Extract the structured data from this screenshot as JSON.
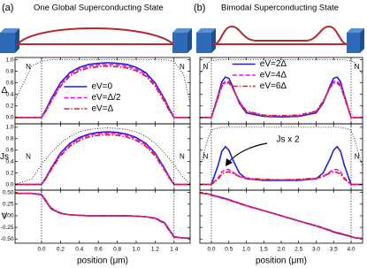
{
  "chart_data": [
    {
      "type": "line",
      "panel_label": "(a)",
      "title": "One Global Superconducting State",
      "xlabel": "position (μm)",
      "xlim": [
        -0.28,
        1.57
      ],
      "xticks": [
        {
          "value": 0,
          "label": "0.0"
        },
        0.2,
        0.4,
        0.6,
        0.8,
        {
          "value": 1,
          "label": "1.0"
        },
        1.2,
        1.4
      ],
      "boundaries": [
        0,
        1.4
      ],
      "ytick_labels": true,
      "legend": "center",
      "x": [
        -0.28,
        -0.1,
        0,
        0.05,
        0.1,
        0.2,
        0.3,
        0.4,
        0.5,
        0.6,
        0.7,
        0.8,
        0.9,
        1.0,
        1.1,
        1.2,
        1.3,
        1.35,
        1.4,
        1.5,
        1.57
      ],
      "panels": [
        {
          "ylabel": "Δ",
          "ylim": [
            -0.11,
            1.04
          ],
          "yticks": [
            {
              "value": 0,
              "label": "0.0"
            },
            0.2,
            0.4,
            0.6,
            0.8,
            {
              "value": 1,
              "label": "1.0"
            }
          ],
          "annotations": [
            "N",
            "N"
          ],
          "series": [
            {
              "color": "#000000",
              "dash": "dotted",
              "values": [
                0.3,
                0.9,
                0.97,
                0.99,
                1,
                1,
                1,
                1,
                1,
                1,
                1,
                1,
                1,
                1,
                1,
                1,
                1,
                0.99,
                0.97,
                0.75,
                0.25
              ]
            },
            {
              "name": "eV=0",
              "color": "#1f1fd6",
              "dash": "solid",
              "values": [
                0,
                0,
                0,
                0.15,
                0.32,
                0.6,
                0.78,
                0.87,
                0.92,
                0.94,
                0.95,
                0.94,
                0.92,
                0.87,
                0.78,
                0.6,
                0.32,
                0.15,
                0,
                0,
                0
              ]
            },
            {
              "name": "eV=Δ/2",
              "color": "#ff00ff",
              "dash": "dash",
              "values": [
                0,
                0,
                0,
                0.13,
                0.3,
                0.57,
                0.75,
                0.84,
                0.89,
                0.91,
                0.92,
                0.91,
                0.89,
                0.84,
                0.75,
                0.57,
                0.3,
                0.13,
                0,
                0,
                0
              ]
            },
            {
              "name": "eV=Δ",
              "color": "#d42424",
              "dash": "dashdot",
              "values": [
                0,
                0,
                0,
                0.12,
                0.27,
                0.54,
                0.72,
                0.81,
                0.86,
                0.88,
                0.89,
                0.88,
                0.86,
                0.81,
                0.72,
                0.54,
                0.27,
                0.12,
                0,
                0,
                0
              ]
            }
          ]
        },
        {
          "ylabel": "Js",
          "ylim": [
            -0.1,
            1.06
          ],
          "yticks": [
            {
              "value": 0,
              "label": "0.0"
            },
            0.2,
            0.4,
            0.6,
            0.8,
            {
              "value": 1,
              "label": "1.0"
            }
          ],
          "annotations": [
            "N",
            "N"
          ],
          "series": [
            {
              "color": "#000000",
              "dash": "dotted",
              "values": [
                0,
                0.1,
                0.35,
                0.45,
                0.55,
                0.72,
                0.84,
                0.92,
                0.96,
                0.98,
                0.99,
                0.98,
                0.96,
                0.92,
                0.84,
                0.72,
                0.55,
                0.45,
                0.35,
                0.12,
                0.02
              ]
            },
            {
              "color": "#1f1fd6",
              "dash": "solid",
              "values": [
                0,
                0,
                0,
                0.13,
                0.28,
                0.55,
                0.72,
                0.82,
                0.88,
                0.91,
                0.92,
                0.91,
                0.88,
                0.82,
                0.72,
                0.55,
                0.28,
                0.13,
                0,
                0,
                0
              ]
            },
            {
              "color": "#ff00ff",
              "dash": "dash",
              "values": [
                0,
                0,
                0,
                0.12,
                0.27,
                0.53,
                0.7,
                0.8,
                0.86,
                0.89,
                0.9,
                0.89,
                0.86,
                0.8,
                0.7,
                0.53,
                0.27,
                0.12,
                0,
                0,
                0
              ]
            },
            {
              "color": "#d42424",
              "dash": "dashdot",
              "values": [
                0,
                0,
                0,
                0.11,
                0.25,
                0.5,
                0.67,
                0.77,
                0.83,
                0.86,
                0.87,
                0.86,
                0.83,
                0.77,
                0.67,
                0.5,
                0.25,
                0.11,
                0,
                0,
                0
              ]
            }
          ]
        },
        {
          "ylabel": "V",
          "ylim": [
            -0.59,
            0.55
          ],
          "yticks": [
            {
              "value": 0.5,
              "label": "0.50"
            },
            0.25,
            {
              "value": 0,
              "label": "0.00"
            },
            -0.25,
            {
              "value": -0.5,
              "label": "-0.50"
            }
          ],
          "series": [
            {
              "color": "#1f1fd6",
              "dash": "solid",
              "values": [
                0.48,
                0.48,
                0.45,
                0.3,
                0.15,
                0.05,
                0.02,
                0.01,
                0,
                0,
                0,
                0,
                0,
                -0.01,
                -0.02,
                -0.05,
                -0.15,
                -0.3,
                -0.45,
                -0.48,
                -0.48
              ]
            },
            {
              "color": "#ff00ff",
              "dash": "dash",
              "values": [
                0.48,
                0.48,
                0.45,
                0.31,
                0.16,
                0.05,
                0.02,
                0.01,
                0,
                0,
                0,
                0,
                0,
                -0.01,
                -0.02,
                -0.05,
                -0.16,
                -0.31,
                -0.45,
                -0.48,
                -0.48
              ]
            },
            {
              "color": "#d42424",
              "dash": "dashdot",
              "values": [
                0.48,
                0.48,
                0.46,
                0.32,
                0.17,
                0.06,
                0.02,
                0.01,
                0,
                0,
                0,
                0,
                0,
                -0.01,
                -0.02,
                -0.06,
                -0.17,
                -0.32,
                -0.46,
                -0.48,
                -0.48
              ]
            }
          ]
        }
      ]
    },
    {
      "type": "line",
      "panel_label": "(b)",
      "title": "Bimodal Superconducting State",
      "xlabel": "position (μm)",
      "xlim": [
        -0.33,
        4.33
      ],
      "xticks": [
        {
          "value": 0,
          "label": "0.0"
        },
        0.5,
        {
          "value": 1,
          "label": "1.0"
        },
        1.5,
        {
          "value": 2,
          "label": "2.0"
        },
        2.5,
        {
          "value": 3,
          "label": "3.0"
        },
        3.5,
        {
          "value": 4,
          "label": "4.0"
        }
      ],
      "boundaries": [
        0,
        4
      ],
      "ytick_labels": false,
      "legend": "upper center",
      "x": [
        -0.33,
        -0.1,
        0,
        0.2,
        0.3,
        0.4,
        0.5,
        0.6,
        0.8,
        1.0,
        1.5,
        2.0,
        2.5,
        3.0,
        3.2,
        3.4,
        3.5,
        3.6,
        3.7,
        3.8,
        4.0,
        4.1,
        4.33
      ],
      "panels": [
        {
          "ylim": [
            -0.11,
            1.04
          ],
          "yticks": [
            0,
            0.2,
            0.4,
            0.6,
            0.8,
            1
          ],
          "annotations": [
            "N",
            "N"
          ],
          "series": [
            {
              "color": "#000000",
              "dash": "dotted",
              "values": [
                0.75,
                0.95,
                0.98,
                1,
                1,
                1,
                1,
                1,
                1,
                1,
                1,
                1,
                1,
                1,
                1,
                1,
                1,
                1,
                1,
                1,
                0.98,
                0.95,
                0.75
              ]
            },
            {
              "name": "eV=2Δ",
              "color": "#1f1fd6",
              "dash": "solid",
              "values": [
                0,
                0,
                0,
                0.4,
                0.62,
                0.7,
                0.68,
                0.55,
                0.25,
                0.08,
                0.02,
                0.01,
                0.02,
                0.08,
                0.25,
                0.55,
                0.68,
                0.7,
                0.62,
                0.4,
                0,
                0,
                0
              ]
            },
            {
              "name": "eV=4Δ",
              "color": "#ff00ff",
              "dash": "dash",
              "values": [
                0,
                0,
                0,
                0.38,
                0.57,
                0.63,
                0.62,
                0.52,
                0.27,
                0.1,
                0.03,
                0.02,
                0.03,
                0.1,
                0.27,
                0.52,
                0.62,
                0.63,
                0.57,
                0.38,
                0,
                0,
                0
              ]
            },
            {
              "name": "eV=6Δ",
              "color": "#d42424",
              "dash": "dashdot",
              "values": [
                0,
                0,
                0,
                0.36,
                0.54,
                0.6,
                0.6,
                0.52,
                0.28,
                0.11,
                0.04,
                0.03,
                0.04,
                0.11,
                0.28,
                0.52,
                0.6,
                0.6,
                0.54,
                0.36,
                0,
                0,
                0
              ]
            }
          ]
        },
        {
          "ylim": [
            -0.1,
            1.06
          ],
          "yticks": [
            0,
            0.2,
            0.4,
            0.6,
            0.8,
            1
          ],
          "annotations": [
            "N",
            "N"
          ],
          "note": "Js x 2",
          "series": [
            {
              "color": "#000000",
              "dash": "dotted",
              "values": [
                0.3,
                0.8,
                0.95,
                0.99,
                1,
                1,
                1,
                1,
                1,
                1,
                1,
                1,
                1,
                1,
                1,
                1,
                1,
                1,
                1,
                0.99,
                0.95,
                0.8,
                0.3
              ]
            },
            {
              "color": "#1f1fd6",
              "dash": "solid",
              "values": [
                0,
                0,
                0,
                0.35,
                0.58,
                0.66,
                0.6,
                0.45,
                0.2,
                0.1,
                0.07,
                0.07,
                0.07,
                0.1,
                0.2,
                0.45,
                0.6,
                0.66,
                0.58,
                0.35,
                0,
                0,
                0
              ]
            },
            {
              "color": "#ff00ff",
              "dash": "dash",
              "values": [
                0,
                0,
                0,
                0.12,
                0.22,
                0.26,
                0.26,
                0.22,
                0.14,
                0.1,
                0.08,
                0.08,
                0.08,
                0.1,
                0.14,
                0.22,
                0.26,
                0.26,
                0.22,
                0.12,
                0,
                0,
                0
              ]
            },
            {
              "color": "#d42424",
              "dash": "dashdot",
              "values": [
                0,
                0,
                0,
                0.1,
                0.18,
                0.21,
                0.22,
                0.2,
                0.14,
                0.11,
                0.09,
                0.08,
                0.09,
                0.11,
                0.14,
                0.2,
                0.22,
                0.21,
                0.18,
                0.1,
                0,
                0,
                0
              ]
            }
          ]
        },
        {
          "ylim": [
            -0.59,
            0.55
          ],
          "yticks": [
            0.5,
            0.25,
            0,
            -0.25,
            -0.5
          ],
          "series": [
            {
              "color": "#1f1fd6",
              "dash": "solid",
              "values": [
                0.49,
                0.47,
                0.45,
                0.41,
                0.39,
                0.37,
                0.35,
                0.32,
                0.27,
                0.22,
                0.11,
                0,
                -0.11,
                -0.22,
                -0.27,
                -0.32,
                -0.35,
                -0.37,
                -0.39,
                -0.41,
                -0.45,
                -0.47,
                -0.49
              ]
            },
            {
              "color": "#ff00ff",
              "dash": "dash",
              "values": [
                0.49,
                0.47,
                0.45,
                0.4,
                0.38,
                0.36,
                0.34,
                0.32,
                0.27,
                0.22,
                0.11,
                0,
                -0.11,
                -0.22,
                -0.27,
                -0.32,
                -0.34,
                -0.36,
                -0.38,
                -0.4,
                -0.45,
                -0.47,
                -0.49
              ]
            },
            {
              "color": "#d42424",
              "dash": "dashdot",
              "values": [
                0.49,
                0.47,
                0.44,
                0.4,
                0.38,
                0.36,
                0.34,
                0.31,
                0.26,
                0.21,
                0.11,
                0,
                -0.11,
                -0.21,
                -0.26,
                -0.31,
                -0.34,
                -0.36,
                -0.38,
                -0.4,
                -0.44,
                -0.47,
                -0.49
              ]
            }
          ]
        }
      ]
    }
  ]
}
